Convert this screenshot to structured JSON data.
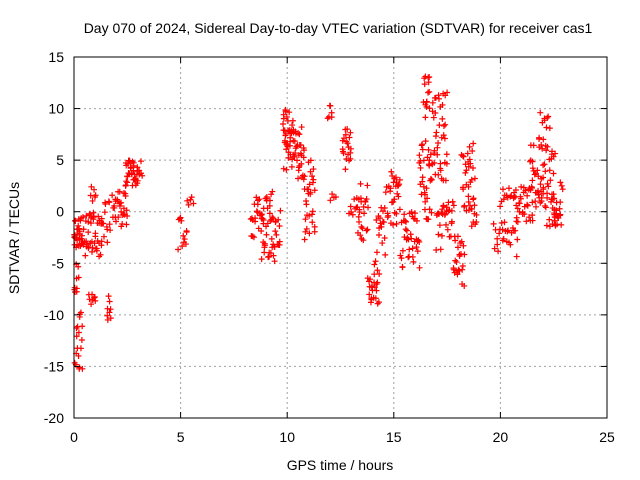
{
  "chart_data": {
    "type": "scatter",
    "title": "Day 070 of 2024, Sidereal Day-to-day VTEC variation (SDTVAR) for receiver cas1",
    "xlabel": "GPS time / hours",
    "ylabel": "SDTVAR / TECUs",
    "xlim": [
      0,
      25
    ],
    "ylim": [
      -20,
      15
    ],
    "x_ticks": [
      0,
      5,
      10,
      15,
      20,
      25
    ],
    "y_ticks": [
      -20,
      -15,
      -10,
      -5,
      0,
      5,
      10,
      15
    ],
    "grid": true,
    "marker": "+",
    "marker_color": "#ff0000",
    "series": [
      {
        "name": "SDTVAR",
        "clusters": [
          {
            "x_range": [
              0.0,
              0.45
            ],
            "y_range": [
              -3.5,
              -0.5
            ],
            "n": 35
          },
          {
            "x_range": [
              0.05,
              0.4
            ],
            "y_range": [
              -15.5,
              -9.5
            ],
            "n": 18
          },
          {
            "x_range": [
              0.0,
              0.2
            ],
            "y_range": [
              -8.0,
              -4.0
            ],
            "n": 10
          },
          {
            "x_range": [
              0.5,
              1.3
            ],
            "y_range": [
              -4.5,
              0.0
            ],
            "n": 40
          },
          {
            "x_range": [
              0.8,
              1.0
            ],
            "y_range": [
              1.0,
              2.5
            ],
            "n": 6
          },
          {
            "x_range": [
              0.7,
              1.0
            ],
            "y_range": [
              -9.5,
              -8.0
            ],
            "n": 8
          },
          {
            "x_range": [
              1.3,
              1.7
            ],
            "y_range": [
              -3.5,
              1.0
            ],
            "n": 15
          },
          {
            "x_range": [
              1.55,
              1.75
            ],
            "y_range": [
              -10.5,
              -7.5
            ],
            "n": 8
          },
          {
            "x_range": [
              1.8,
              2.5
            ],
            "y_range": [
              -1.5,
              2.0
            ],
            "n": 30
          },
          {
            "x_range": [
              2.4,
              3.0
            ],
            "y_range": [
              2.5,
              5.0
            ],
            "n": 35
          },
          {
            "x_range": [
              3.0,
              3.2
            ],
            "y_range": [
              3.0,
              5.3
            ],
            "n": 6
          },
          {
            "x_range": [
              4.9,
              5.3
            ],
            "y_range": [
              -4.5,
              -0.5
            ],
            "n": 12
          },
          {
            "x_range": [
              5.3,
              5.6
            ],
            "y_range": [
              0.0,
              1.8
            ],
            "n": 5
          },
          {
            "x_range": [
              8.3,
              8.8
            ],
            "y_range": [
              -2.5,
              1.5
            ],
            "n": 20
          },
          {
            "x_range": [
              8.8,
              9.4
            ],
            "y_range": [
              -4.8,
              2.0
            ],
            "n": 40
          },
          {
            "x_range": [
              9.4,
              9.7
            ],
            "y_range": [
              -3.5,
              0.5
            ],
            "n": 12
          },
          {
            "x_range": [
              9.8,
              10.3
            ],
            "y_range": [
              4.0,
              10.0
            ],
            "n": 40
          },
          {
            "x_range": [
              10.3,
              10.8
            ],
            "y_range": [
              3.0,
              8.5
            ],
            "n": 30
          },
          {
            "x_range": [
              10.8,
              11.3
            ],
            "y_range": [
              -4.0,
              5.0
            ],
            "n": 30
          },
          {
            "x_range": [
              11.9,
              12.1
            ],
            "y_range": [
              9.0,
              10.5
            ],
            "n": 6
          },
          {
            "x_range": [
              12.0,
              12.3
            ],
            "y_range": [
              1.0,
              2.0
            ],
            "n": 4
          },
          {
            "x_range": [
              12.6,
              13.0
            ],
            "y_range": [
              4.0,
              8.5
            ],
            "n": 20
          },
          {
            "x_range": [
              12.9,
              13.5
            ],
            "y_range": [
              -1.5,
              1.5
            ],
            "n": 12
          },
          {
            "x_range": [
              13.3,
              13.8
            ],
            "y_range": [
              -3.0,
              3.0
            ],
            "n": 20
          },
          {
            "x_range": [
              13.8,
              14.3
            ],
            "y_range": [
              -9.0,
              -4.5
            ],
            "n": 25
          },
          {
            "x_range": [
              14.2,
              14.6
            ],
            "y_range": [
              -4.5,
              0.5
            ],
            "n": 15
          },
          {
            "x_range": [
              14.6,
              15.2
            ],
            "y_range": [
              -2.0,
              2.5
            ],
            "n": 20
          },
          {
            "x_range": [
              14.9,
              15.3
            ],
            "y_range": [
              2.5,
              4.0
            ],
            "n": 10
          },
          {
            "x_range": [
              15.3,
              16.2
            ],
            "y_range": [
              -5.5,
              0.5
            ],
            "n": 40
          },
          {
            "x_range": [
              16.2,
              16.8
            ],
            "y_range": [
              -1.0,
              7.0
            ],
            "n": 35
          },
          {
            "x_range": [
              16.4,
              16.7
            ],
            "y_range": [
              9.0,
              13.2
            ],
            "n": 15
          },
          {
            "x_range": [
              16.8,
              17.5
            ],
            "y_range": [
              3.0,
              12.0
            ],
            "n": 40
          },
          {
            "x_range": [
              17.0,
              17.8
            ],
            "y_range": [
              -4.0,
              1.0
            ],
            "n": 30
          },
          {
            "x_range": [
              17.8,
              18.3
            ],
            "y_range": [
              -7.5,
              -2.0
            ],
            "n": 25
          },
          {
            "x_range": [
              18.2,
              18.8
            ],
            "y_range": [
              0.0,
              7.0
            ],
            "n": 30
          },
          {
            "x_range": [
              18.5,
              18.9
            ],
            "y_range": [
              -1.5,
              1.0
            ],
            "n": 10
          },
          {
            "x_range": [
              19.7,
              20.3
            ],
            "y_range": [
              -4.0,
              -1.0
            ],
            "n": 15
          },
          {
            "x_range": [
              20.0,
              20.5
            ],
            "y_range": [
              0.5,
              3.0
            ],
            "n": 10
          },
          {
            "x_range": [
              20.3,
              20.8
            ],
            "y_range": [
              -4.5,
              -1.5
            ],
            "n": 10
          },
          {
            "x_range": [
              20.6,
              21.5
            ],
            "y_range": [
              -1.0,
              2.5
            ],
            "n": 35
          },
          {
            "x_range": [
              21.4,
              22.0
            ],
            "y_range": [
              0.0,
              6.5
            ],
            "n": 30
          },
          {
            "x_range": [
              21.8,
              22.3
            ],
            "y_range": [
              6.0,
              9.8
            ],
            "n": 15
          },
          {
            "x_range": [
              22.0,
              22.6
            ],
            "y_range": [
              -1.5,
              6.0
            ],
            "n": 30
          },
          {
            "x_range": [
              22.4,
              22.9
            ],
            "y_range": [
              -1.5,
              3.5
            ],
            "n": 25
          }
        ]
      }
    ]
  }
}
